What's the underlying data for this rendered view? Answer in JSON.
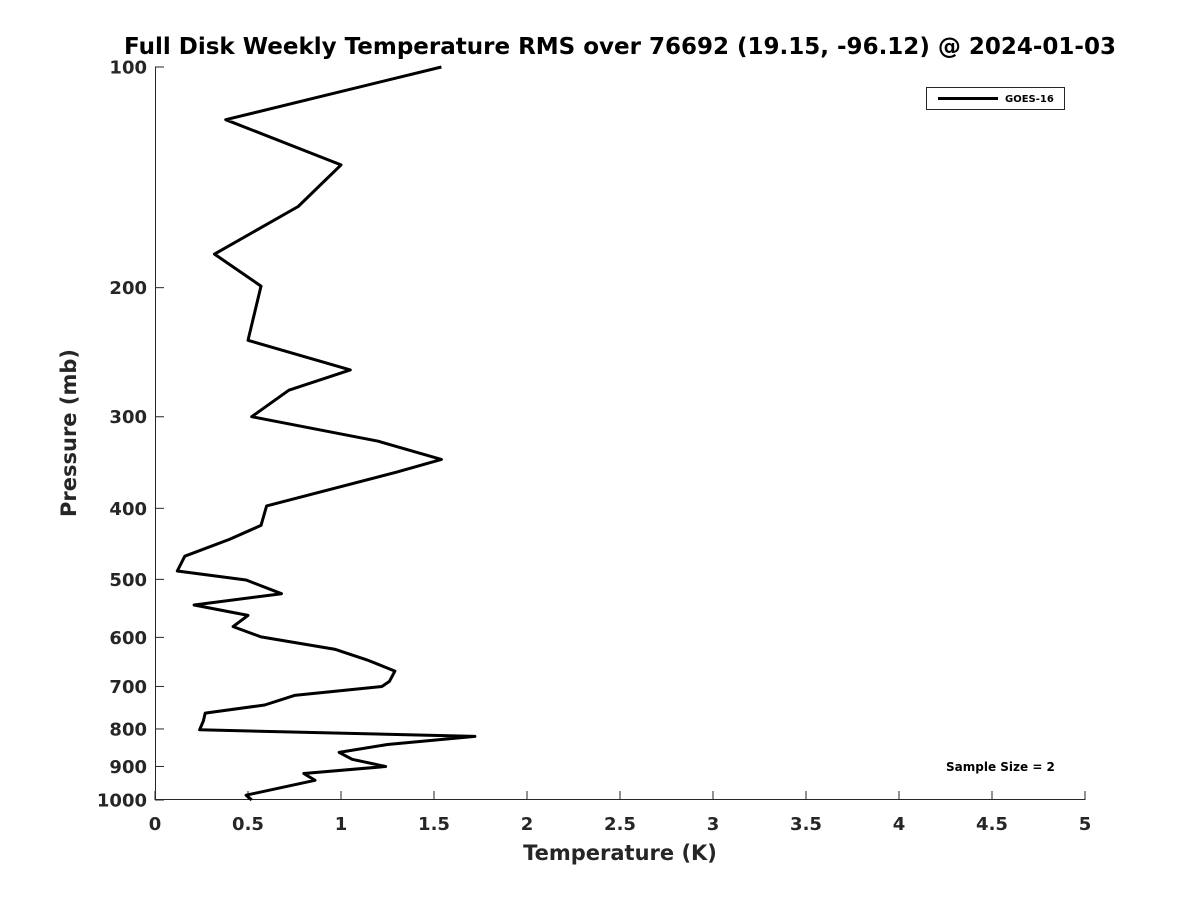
{
  "chart_data": {
    "type": "line",
    "title": "Full Disk Weekly Temperature RMS over 76692 (19.15, -96.12) @ 2024-01-03",
    "xlabel": "Temperature (K)",
    "ylabel": "Pressure (mb)",
    "xlim": [
      0,
      5
    ],
    "ylim": [
      1000,
      100
    ],
    "y_scale": "log",
    "y_reversed": true,
    "grid": false,
    "legend_position": "top-right",
    "x_ticks": [
      0,
      0.5,
      1,
      1.5,
      2,
      2.5,
      3,
      3.5,
      4,
      4.5,
      5
    ],
    "x_tick_labels": [
      "0",
      "0.5",
      "1",
      "1.5",
      "2",
      "2.5",
      "3",
      "3.5",
      "4",
      "4.5",
      "5"
    ],
    "y_ticks": [
      100,
      200,
      300,
      400,
      500,
      600,
      700,
      800,
      900,
      1000
    ],
    "y_tick_labels": [
      "100",
      "200",
      "300",
      "400",
      "500",
      "600",
      "700",
      "800",
      "900",
      "1000"
    ],
    "series": [
      {
        "name": "GOES-16",
        "color": "#000000",
        "points": [
          [
            1.54,
            100
          ],
          [
            0.38,
            118
          ],
          [
            1.0,
            136
          ],
          [
            0.77,
            155
          ],
          [
            0.32,
            180
          ],
          [
            0.57,
            199
          ],
          [
            0.5,
            236
          ],
          [
            1.05,
            259
          ],
          [
            0.72,
            276
          ],
          [
            0.52,
            300
          ],
          [
            1.2,
            324
          ],
          [
            1.54,
            343
          ],
          [
            1.3,
            357
          ],
          [
            0.6,
            397
          ],
          [
            0.57,
            422
          ],
          [
            0.4,
            441
          ],
          [
            0.16,
            465
          ],
          [
            0.12,
            487
          ],
          [
            0.49,
            501
          ],
          [
            0.68,
            523
          ],
          [
            0.21,
            542
          ],
          [
            0.5,
            560
          ],
          [
            0.42,
            580
          ],
          [
            0.57,
            599
          ],
          [
            0.97,
            623
          ],
          [
            1.14,
            644
          ],
          [
            1.29,
            667
          ],
          [
            1.26,
            689
          ],
          [
            1.22,
            700
          ],
          [
            0.75,
            720
          ],
          [
            0.59,
            742
          ],
          [
            0.27,
            761
          ],
          [
            0.26,
            780
          ],
          [
            0.24,
            802
          ],
          [
            1.72,
            819
          ],
          [
            1.25,
            840
          ],
          [
            0.99,
            861
          ],
          [
            1.06,
            880
          ],
          [
            1.24,
            900
          ],
          [
            0.8,
            920
          ],
          [
            0.86,
            940
          ],
          [
            0.49,
            985
          ],
          [
            0.52,
            1000
          ]
        ]
      }
    ],
    "annotations": [
      "Sample Size = 2"
    ]
  }
}
